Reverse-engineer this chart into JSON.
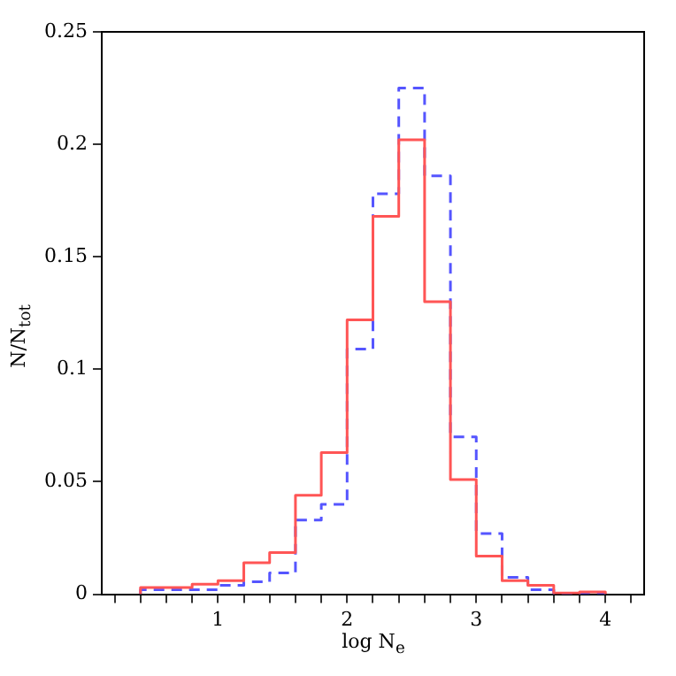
{
  "chart_data": {
    "type": "histogram",
    "xlabel": "log N$_{e}$",
    "ylabel": "N/N$_{tot}$",
    "bins": [
      0.4,
      0.6,
      0.8,
      1.0,
      1.2,
      1.4,
      1.6,
      1.8,
      2.0,
      2.2,
      2.4,
      2.6,
      2.8,
      3.0,
      3.2,
      3.4,
      3.6,
      3.8,
      4.0
    ],
    "series": [
      {
        "color": "#ff5555",
        "line_style": "solid",
        "values": [
          0.003,
          0.003,
          0.0045,
          0.006,
          0.014,
          0.0185,
          0.044,
          0.063,
          0.122,
          0.168,
          0.202,
          0.13,
          0.051,
          0.017,
          0.006,
          0.004,
          0.0005,
          0.001
        ]
      },
      {
        "color": "#5555ff",
        "line_style": "dashed",
        "values": [
          0.002,
          0.002,
          0.002,
          0.004,
          0.0055,
          0.0095,
          0.033,
          0.04,
          0.109,
          0.178,
          0.225,
          0.186,
          0.07,
          0.027,
          0.0075,
          0.002,
          0,
          0
        ]
      }
    ],
    "xlim": [
      0.1,
      4.3
    ],
    "ylim": [
      0,
      0.25
    ],
    "xticks": [
      {
        "value": 0.2,
        "label": null
      },
      {
        "value": 0.4,
        "label": null
      },
      {
        "value": 0.6,
        "label": null
      },
      {
        "value": 0.8,
        "label": null
      },
      1,
      {
        "value": 1.2,
        "label": null
      },
      {
        "value": 1.4,
        "label": null
      },
      {
        "value": 1.6,
        "label": null
      },
      {
        "value": 1.8,
        "label": null
      },
      2,
      {
        "value": 2.2,
        "label": null
      },
      {
        "value": 2.4,
        "label": null
      },
      {
        "value": 2.6,
        "label": null
      },
      {
        "value": 2.8,
        "label": null
      },
      3,
      {
        "value": 3.2,
        "label": null
      },
      {
        "value": 3.4,
        "label": null
      },
      {
        "value": 3.6,
        "label": null
      },
      {
        "value": 3.8,
        "label": null
      },
      4,
      {
        "value": 4.2,
        "label": null
      }
    ],
    "yticks": [
      0,
      0.05,
      0.1,
      0.15,
      0.2,
      0.25
    ],
    "grid": false,
    "legend": false
  }
}
